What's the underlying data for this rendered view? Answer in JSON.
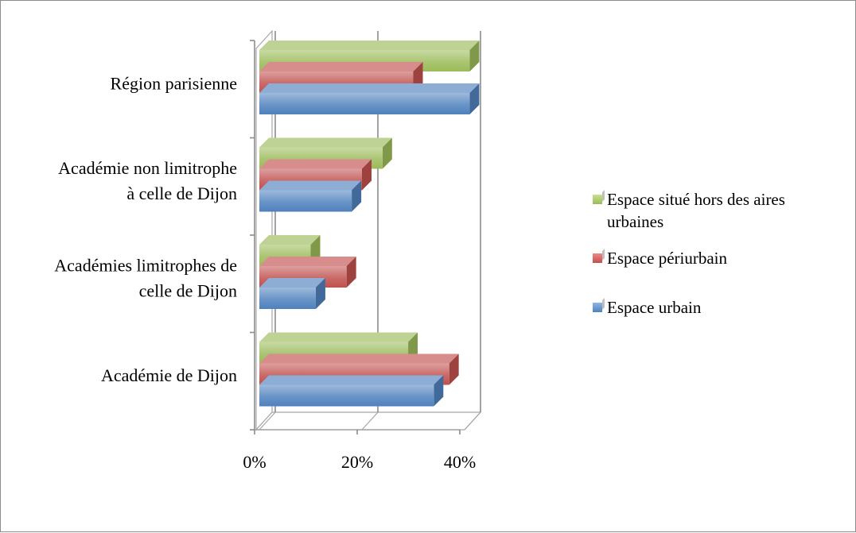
{
  "chart_data": {
    "type": "bar",
    "orientation": "horizontal",
    "style": "3d-clustered",
    "title": "",
    "xlabel": "",
    "ylabel": "",
    "categories": [
      "Académie de Dijon",
      "Académies limitrophes de celle de Dijon",
      "Académie non limitrophe à celle de Dijon",
      "Région parisienne"
    ],
    "category_label_lines": [
      [
        "Académie de Dijon"
      ],
      [
        "Académies limitrophes de",
        "celle de Dijon"
      ],
      [
        "Académie non limitrophe",
        "à celle de Dijon"
      ],
      [
        "Région parisienne"
      ]
    ],
    "series": [
      {
        "name": "Espace urbain",
        "color": "#4f81bd",
        "values": [
          34,
          11,
          18,
          41
        ]
      },
      {
        "name": "Espace périurbain",
        "color": "#c0504d",
        "values": [
          37,
          17,
          20,
          30
        ]
      },
      {
        "name": "Espace situé hors des aires urbaines",
        "color": "#9bbb59",
        "values": [
          29,
          10,
          24,
          41
        ]
      }
    ],
    "xlim": [
      0,
      40
    ],
    "tick_values": [
      0,
      20,
      40
    ],
    "tick_labels": [
      "0%",
      "20%",
      "40%"
    ],
    "grid": true,
    "legend_position": "right"
  },
  "legend": {
    "items": [
      {
        "label": "Espace situé hors des aires urbaines",
        "color": "#9bbb59"
      },
      {
        "label": "Espace périurbain",
        "color": "#c0504d"
      },
      {
        "label": "Espace urbain",
        "color": "#4f81bd"
      }
    ]
  }
}
